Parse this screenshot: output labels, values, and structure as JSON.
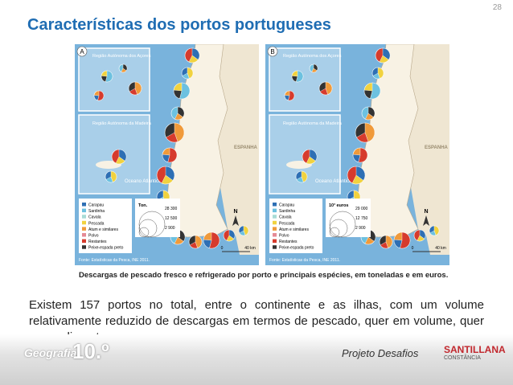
{
  "page_number": "28",
  "title": "Características dos portos portugueses",
  "maps": [
    {
      "label": "A",
      "azores": "Região Autónoma dos Açores",
      "madeira": "Região Autónoma da Madeira",
      "spain": "ESPANHA",
      "ocean": "Oceano Atlântico",
      "legend": [
        {
          "label": "Carapau",
          "color": "#2e6fb4"
        },
        {
          "label": "Sardinha",
          "color": "#6cc1e0"
        },
        {
          "label": "Cavala",
          "color": "#a7dcd6"
        },
        {
          "label": "Pescada",
          "color": "#f1d23f"
        },
        {
          "label": "Atum e similares",
          "color": "#f09a3a"
        },
        {
          "label": "Polvo",
          "color": "#e58a95"
        },
        {
          "label": "Restantes",
          "color": "#d63b2d"
        },
        {
          "label": "Peixe-espada preto",
          "color": "#333333"
        }
      ],
      "scale_title": "Ton.",
      "scale_values": [
        "28 300",
        "12 500",
        "2 900"
      ],
      "source": "Fonte: Estatísticas da Pesca, INE 2011.",
      "north": "N",
      "distance_start": "0",
      "distance_end": "40 km"
    },
    {
      "label": "B",
      "azores": "Região Autónoma dos Açores",
      "madeira": "Região Autónoma da Madeira",
      "spain": "ESPANHA",
      "ocean": "Oceano Atlântico",
      "legend": [
        {
          "label": "Carapau",
          "color": "#2e6fb4"
        },
        {
          "label": "Sardinha",
          "color": "#6cc1e0"
        },
        {
          "label": "Cavala",
          "color": "#a7dcd6"
        },
        {
          "label": "Pescada",
          "color": "#f1d23f"
        },
        {
          "label": "Atum e similares",
          "color": "#f09a3a"
        },
        {
          "label": "Polvo",
          "color": "#e58a95"
        },
        {
          "label": "Restantes",
          "color": "#d63b2d"
        },
        {
          "label": "Peixe-espada preto",
          "color": "#333333"
        }
      ],
      "scale_title": "10³ euros",
      "scale_values": [
        "29 000",
        "12 750",
        "2 900"
      ],
      "source": "Fonte: Estatísticas da Pesca, INE 2011.",
      "north": "N",
      "distance_start": "0",
      "distance_end": "40 km"
    }
  ],
  "caption": "Descargas de pescado fresco e refrigerado por porto e principais espécies, em toneladas e em euros.",
  "paragraph": "Existem 157 portos no total, entre o continente e as ilhas, com um volume relativamente reduzido de descargas em termos de pescado, quer em volume, quer no rendimento.",
  "footer": {
    "subject": "Geografia",
    "grade": "10.º",
    "project": "Projeto Desafios",
    "publisher": "SANTILLANA",
    "imprint": "CONSTÂNCIA"
  }
}
